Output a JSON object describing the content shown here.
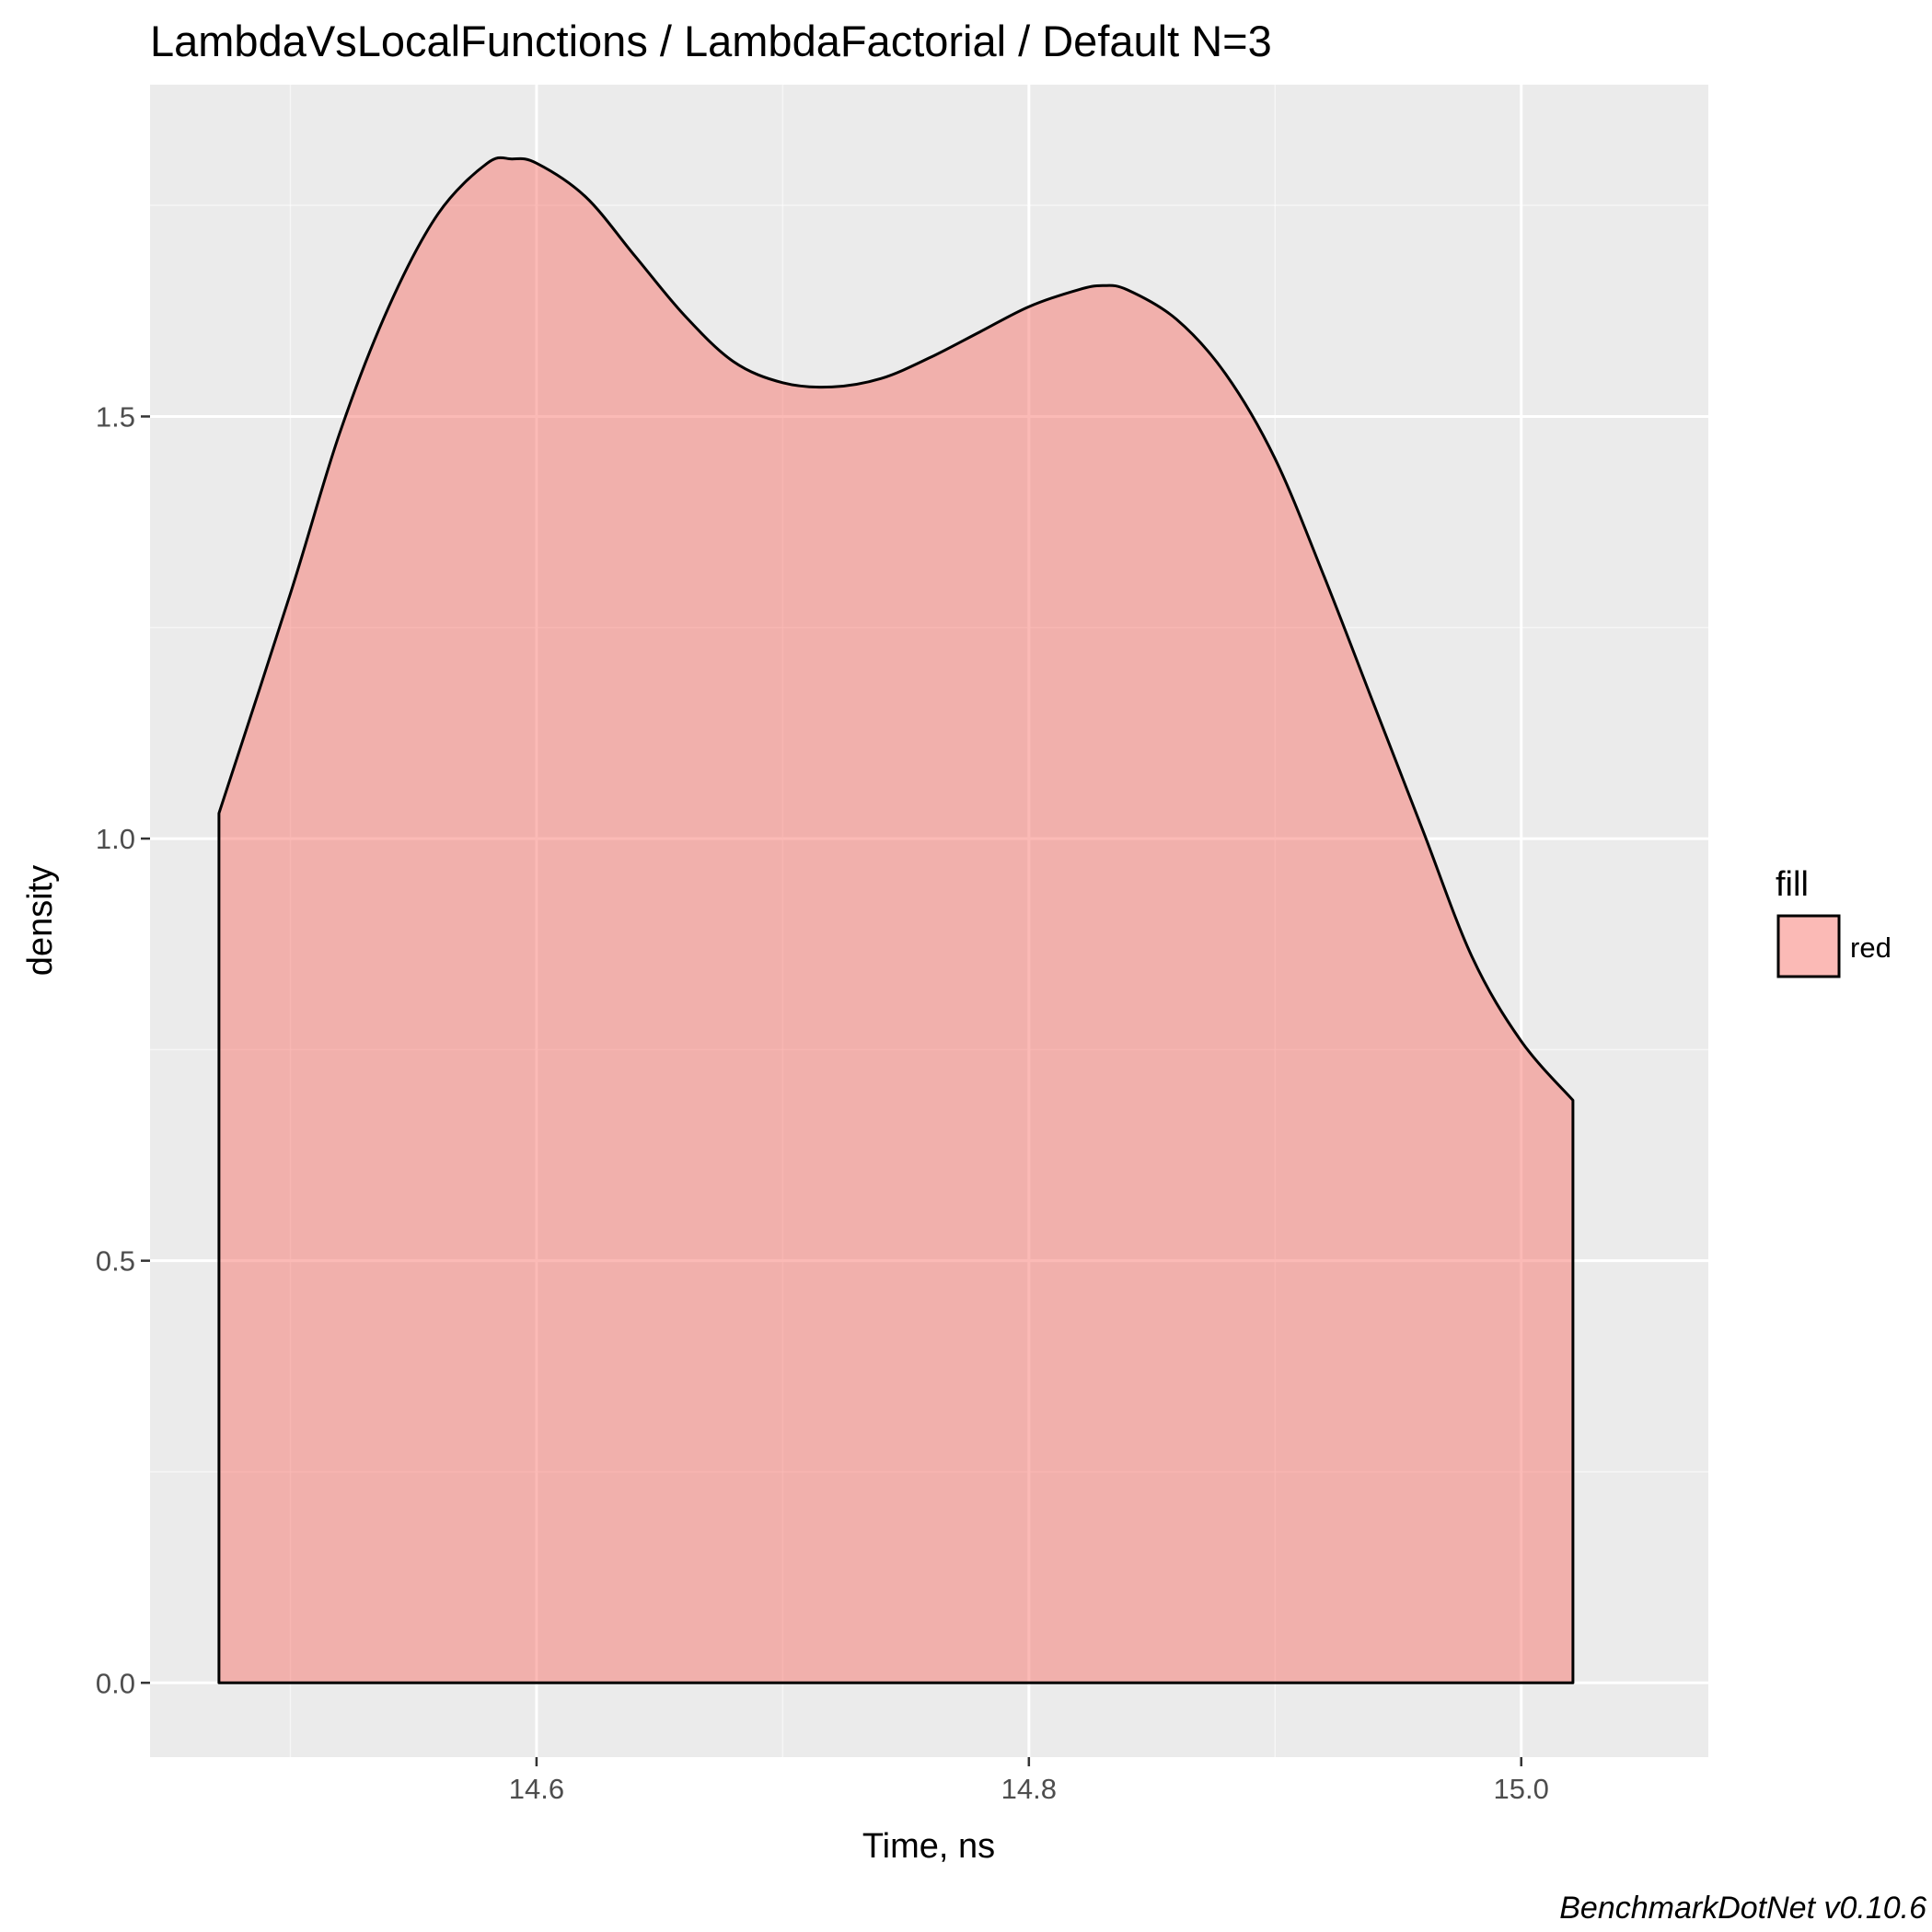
{
  "chart_data": {
    "type": "area",
    "subtype": "density",
    "title": "LambdaVsLocalFunctions / LambdaFactorial / Default N=3",
    "xlabel": "Time, ns",
    "ylabel": "density",
    "xlim": [
      14.443,
      15.076
    ],
    "ylim": [
      -0.088,
      1.893
    ],
    "x_ticks": [
      {
        "value": 14.6,
        "label": "14.6"
      },
      {
        "value": 14.8,
        "label": "14.8"
      },
      {
        "value": 15.0,
        "label": "15.0"
      }
    ],
    "y_ticks": [
      {
        "value": 0.0,
        "label": "0.0"
      },
      {
        "value": 0.5,
        "label": "0.5"
      },
      {
        "value": 1.0,
        "label": "1.0"
      },
      {
        "value": 1.5,
        "label": "1.5"
      }
    ],
    "x_minor_breaks": [
      14.5,
      14.7,
      14.9
    ],
    "y_minor_breaks": [
      0.25,
      0.75,
      1.25,
      1.75
    ],
    "grid": true,
    "legend": {
      "title": "fill",
      "position": "right",
      "entries": [
        {
          "label": "red"
        }
      ]
    },
    "series": [
      {
        "name": "red",
        "x": [
          14.471,
          14.5,
          14.52,
          14.54,
          14.56,
          14.58,
          14.59,
          14.6,
          14.62,
          14.64,
          14.66,
          14.68,
          14.7,
          14.72,
          14.74,
          14.76,
          14.78,
          14.8,
          14.82,
          14.83,
          14.84,
          14.86,
          14.88,
          14.9,
          14.92,
          14.94,
          14.96,
          14.98,
          15.0,
          15.021
        ],
        "y": [
          1.03,
          1.29,
          1.48,
          1.63,
          1.74,
          1.8,
          1.805,
          1.8,
          1.76,
          1.69,
          1.62,
          1.565,
          1.54,
          1.535,
          1.545,
          1.57,
          1.6,
          1.63,
          1.65,
          1.655,
          1.65,
          1.615,
          1.55,
          1.45,
          1.31,
          1.16,
          1.01,
          0.86,
          0.76,
          0.69
        ]
      }
    ],
    "colors": {
      "panel_background": "#ebebeb",
      "grid_major": "#ffffff",
      "fill": "#f8766d",
      "fill_opacity": 0.5,
      "outline": "#000000",
      "tick_text": "#4d4d4d",
      "tick_mark": "#333333"
    },
    "caption": "BenchmarkDotNet v0.10.6"
  }
}
